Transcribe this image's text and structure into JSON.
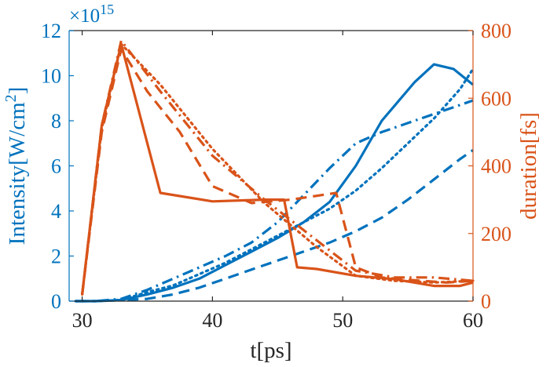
{
  "chart_data": {
    "type": "line",
    "title": "",
    "x": {
      "label": "t[ps]",
      "lim": [
        29,
        60
      ],
      "ticks": [
        30,
        40,
        50,
        60
      ],
      "tick_labels": [
        "30",
        "40",
        "50",
        "60"
      ]
    },
    "y_left": {
      "label_main": "Intensity[W/cm",
      "label_sup": "2",
      "label_end": "]",
      "multiplier_base": "×10",
      "multiplier_exp": "15",
      "lim": [
        0,
        12
      ],
      "ticks": [
        0,
        2,
        4,
        6,
        8,
        10,
        12
      ],
      "tick_labels": [
        "0",
        "2",
        "4",
        "6",
        "8",
        "10",
        "12"
      ],
      "scale": 1000000000000000.0,
      "color": "#0072BD"
    },
    "y_right": {
      "label": "duration[fs]",
      "lim": [
        0,
        800
      ],
      "ticks": [
        0,
        200,
        400,
        600,
        800
      ],
      "tick_labels": [
        "0",
        "200",
        "400",
        "600",
        "800"
      ],
      "color": "#D95319"
    },
    "grid": false,
    "legend": null,
    "series": [
      {
        "axis": "left",
        "style": "solid",
        "color": "#0072BD",
        "x": [
          29.5,
          31,
          33,
          35,
          37,
          39,
          41,
          43,
          45,
          47,
          49,
          51,
          53,
          55.5,
          57,
          58.5,
          60
        ],
        "y": [
          0.0,
          0.0,
          0.05,
          0.3,
          0.6,
          1.0,
          1.6,
          2.2,
          2.8,
          3.5,
          4.4,
          6.0,
          8.0,
          9.7,
          10.5,
          10.3,
          9.6
        ]
      },
      {
        "axis": "left",
        "style": "dashed",
        "color": "#0072BD",
        "x": [
          29.5,
          31,
          33,
          35,
          37,
          39,
          41,
          43,
          45,
          47,
          49,
          51,
          53,
          55,
          57,
          59,
          60
        ],
        "y": [
          0.0,
          0.0,
          0.05,
          0.1,
          0.3,
          0.6,
          1.0,
          1.4,
          1.8,
          2.2,
          2.6,
          3.1,
          3.7,
          4.5,
          5.4,
          6.3,
          6.7
        ]
      },
      {
        "axis": "left",
        "style": "dotted",
        "color": "#0072BD",
        "x": [
          29.5,
          31,
          33,
          35,
          37,
          39,
          41,
          43,
          45,
          47,
          49,
          51,
          53,
          55,
          57,
          59,
          60
        ],
        "y": [
          0.0,
          0.0,
          0.05,
          0.4,
          0.7,
          1.2,
          1.7,
          2.3,
          2.9,
          3.5,
          4.1,
          4.9,
          5.9,
          7.0,
          8.1,
          9.4,
          10.3
        ]
      },
      {
        "axis": "left",
        "style": "dashdot",
        "color": "#0072BD",
        "x": [
          29.5,
          31,
          33,
          35,
          37,
          39,
          41,
          43,
          45,
          47,
          49,
          51,
          53,
          55,
          57,
          59,
          60
        ],
        "y": [
          0.0,
          0.0,
          0.1,
          0.5,
          1.0,
          1.5,
          2.0,
          2.6,
          3.5,
          4.7,
          5.9,
          7.0,
          7.5,
          7.9,
          8.3,
          8.7,
          8.9
        ]
      },
      {
        "axis": "right",
        "style": "solid",
        "color": "#D95319",
        "x": [
          30,
          31.5,
          33,
          36,
          40,
          44,
          45.5,
          46.5,
          48,
          51,
          54,
          57,
          59,
          60
        ],
        "y": [
          20,
          520,
          760,
          320,
          295,
          300,
          300,
          100,
          95,
          75,
          65,
          45,
          45,
          55
        ]
      },
      {
        "axis": "right",
        "style": "dashed",
        "color": "#D95319",
        "x": [
          30,
          31.5,
          33,
          35,
          37.5,
          40,
          43,
          46,
          49.5,
          51,
          53,
          56,
          58,
          60
        ],
        "y": [
          20,
          500,
          745,
          620,
          500,
          340,
          290,
          300,
          320,
          100,
          70,
          60,
          55,
          60
        ]
      },
      {
        "axis": "right",
        "style": "dotted",
        "color": "#D95319",
        "x": [
          30,
          31.5,
          33,
          36,
          40,
          44,
          48,
          51,
          54,
          57,
          60
        ],
        "y": [
          20,
          510,
          760,
          640,
          450,
          290,
          160,
          75,
          60,
          55,
          60
        ]
      },
      {
        "axis": "right",
        "style": "dashdot",
        "color": "#D95319",
        "x": [
          30,
          31.5,
          33,
          36,
          40,
          44,
          48,
          51,
          54,
          57,
          60
        ],
        "y": [
          20,
          520,
          770,
          620,
          430,
          300,
          180,
          90,
          70,
          70,
          60
        ]
      }
    ]
  }
}
